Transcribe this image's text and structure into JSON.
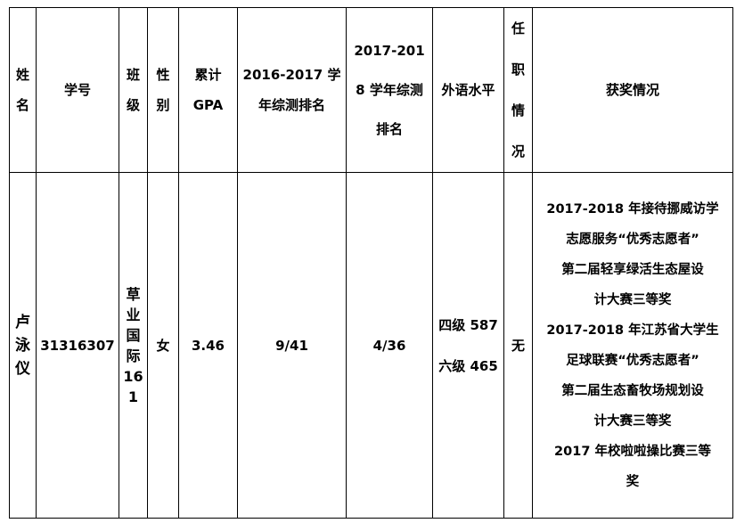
{
  "headers": {
    "name": [
      "姓",
      "名"
    ],
    "id": [
      "学号"
    ],
    "class": [
      "班",
      "级"
    ],
    "gender": [
      "性",
      "别"
    ],
    "gpa": [
      "累计",
      "GPA"
    ],
    "rank2016": [
      "2016-2017 学",
      "年综测排名"
    ],
    "rank2017": [
      "2017-201",
      "8 学年综测",
      "排名"
    ],
    "language": [
      "外语水平"
    ],
    "position": [
      "任",
      "职",
      "情",
      "况"
    ],
    "awards": [
      "获奖情况"
    ]
  },
  "row": {
    "name": [
      "卢",
      "泳",
      "仪"
    ],
    "id": "31316307",
    "class": [
      "草",
      "业",
      "国",
      "际",
      "16",
      "1"
    ],
    "gender": "女",
    "gpa": "3.46",
    "rank2016": "9/41",
    "rank2017": "4/36",
    "language": [
      "四级 587",
      "六级 465"
    ],
    "position": "无",
    "awards": [
      "2017-2018 年接待挪威访学",
      "志愿服务“优秀志愿者”",
      "第二届轻享绿活生态屋设",
      "计大赛三等奖",
      "2017-2018 年江苏省大学生",
      "足球联赛“优秀志愿者”",
      "第二届生态畜牧场规划设",
      "计大赛三等奖",
      "2017 年校啦啦操比赛三等",
      "奖"
    ]
  }
}
